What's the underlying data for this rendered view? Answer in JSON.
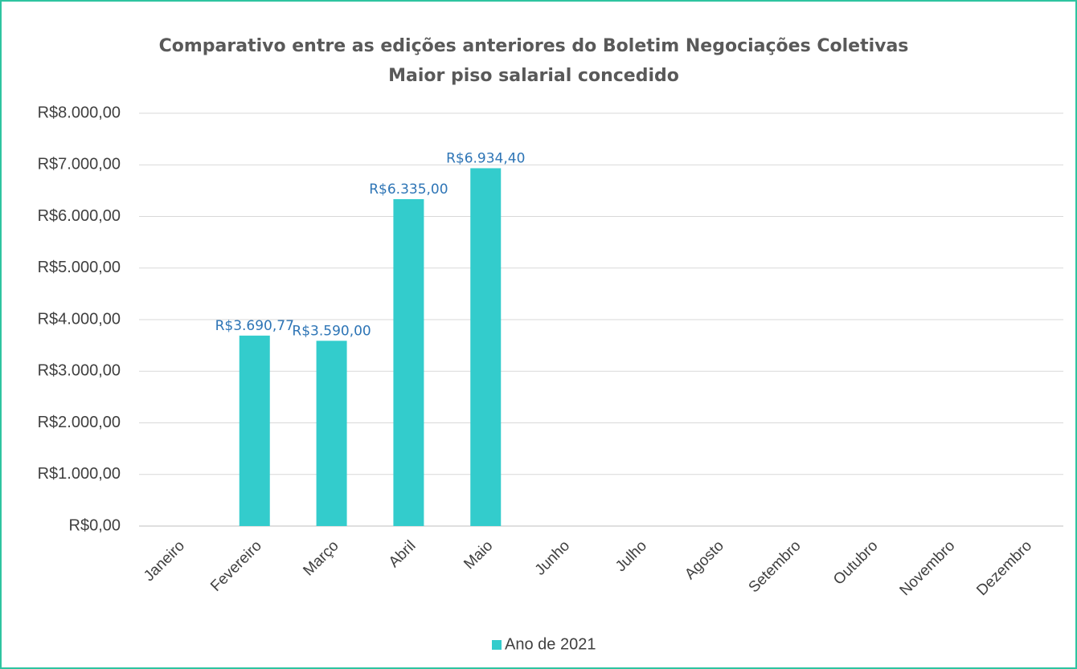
{
  "chart_data": {
    "type": "bar",
    "title": "Comparativo entre as edições anteriores do Boletim Negociações Coletivas",
    "subtitle": "Maior piso salarial concedido",
    "categories": [
      "Janeiro",
      "Fevereiro",
      "Março",
      "Abril",
      "Maio",
      "Junho",
      "Julho",
      "Agosto",
      "Setembro",
      "Outubro",
      "Novembro",
      "Dezembro"
    ],
    "series": [
      {
        "name": "Ano de 2021",
        "color": "#33cccc",
        "values": [
          null,
          3690.77,
          3590,
          6335,
          6934.4,
          null,
          null,
          null,
          null,
          null,
          null,
          null
        ],
        "value_labels": [
          null,
          "R$3.690,77",
          "R$3.590,00",
          "R$6.335,00",
          "R$6.934,40",
          null,
          null,
          null,
          null,
          null,
          null,
          null
        ]
      }
    ],
    "ylim": [
      0,
      8000
    ],
    "yticks": [
      {
        "value": 0,
        "label": "R$0,00"
      },
      {
        "value": 1000,
        "label": "R$1.000,00"
      },
      {
        "value": 2000,
        "label": "R$2.000,00"
      },
      {
        "value": 3000,
        "label": "R$3.000,00"
      },
      {
        "value": 4000,
        "label": "R$4.000,00"
      },
      {
        "value": 5000,
        "label": "R$5.000,00"
      },
      {
        "value": 6000,
        "label": "R$6.000,00"
      },
      {
        "value": 7000,
        "label": "R$7.000,00"
      },
      {
        "value": 8000,
        "label": "R$8.000,00"
      }
    ],
    "grid": true,
    "legend": "bottom"
  }
}
